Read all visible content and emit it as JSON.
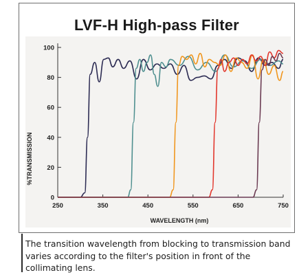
{
  "header": {
    "title": "LVF-H High-pass Filter"
  },
  "caption": "The transition wavelength from blocking to transmission band varies according to the filter's position in front of the collimating lens.",
  "chart_data": {
    "type": "line",
    "title": "LVF-H High-pass Filter",
    "xlabel": "WAVELENGTH (nm)",
    "ylabel": "%TRANSMISSION",
    "xlim": [
      250,
      750
    ],
    "ylim": [
      0,
      100
    ],
    "x_ticks": [
      250,
      350,
      450,
      550,
      650,
      750
    ],
    "y_ticks": [
      0,
      20,
      40,
      60,
      80,
      100
    ],
    "grid": false,
    "legend": "none",
    "series": [
      {
        "color": "#2b2a52",
        "x": [
          250,
          300,
          310,
          316,
          322,
          332,
          342,
          352,
          362,
          372,
          384,
          396,
          410,
          425,
          440,
          455,
          470,
          485,
          500,
          515,
          530,
          545,
          560,
          575,
          590,
          605,
          620,
          635,
          650,
          665,
          680,
          695,
          710,
          725,
          740,
          750
        ],
        "y": [
          0,
          0,
          3,
          40,
          82,
          90,
          77,
          92,
          93,
          87,
          92,
          86,
          91,
          79,
          92,
          85,
          89,
          86,
          89,
          82,
          88,
          78,
          80,
          81,
          79,
          88,
          92,
          86,
          93,
          91,
          84,
          93,
          88,
          90,
          86,
          92
        ]
      },
      {
        "color": "#4e8f8f",
        "x": [
          250,
          405,
          412,
          418,
          424,
          432,
          440,
          448,
          456,
          464,
          472,
          480,
          490,
          500,
          520,
          540,
          560,
          580,
          600,
          620,
          640,
          660,
          680,
          700,
          720,
          740,
          750
        ],
        "y": [
          0,
          0,
          5,
          50,
          86,
          92,
          84,
          90,
          95,
          82,
          74,
          90,
          87,
          92,
          88,
          94,
          85,
          90,
          84,
          95,
          87,
          91,
          86,
          92,
          88,
          91,
          89
        ]
      },
      {
        "color": "#f0961e",
        "x": [
          250,
          498,
          506,
          512,
          518,
          526,
          536,
          546,
          556,
          566,
          576,
          586,
          598,
          610,
          622,
          634,
          646,
          658,
          670,
          682,
          694,
          706,
          718,
          730,
          742,
          750
        ],
        "y": [
          0,
          0,
          5,
          50,
          88,
          94,
          92,
          95,
          89,
          96,
          87,
          92,
          90,
          88,
          95,
          84,
          93,
          90,
          86,
          95,
          79,
          92,
          82,
          88,
          78,
          84
        ]
      },
      {
        "color": "#e2362c",
        "x": [
          250,
          585,
          593,
          599,
          605,
          612,
          620,
          630,
          640,
          650,
          660,
          670,
          680,
          690,
          700,
          710,
          720,
          730,
          740,
          750
        ],
        "y": [
          0,
          0,
          5,
          50,
          86,
          92,
          84,
          90,
          93,
          88,
          92,
          89,
          95,
          91,
          94,
          88,
          97,
          93,
          98,
          96
        ]
      },
      {
        "color": "#6a3a52",
        "x": [
          250,
          683,
          691,
          697,
          703,
          710,
          718,
          726,
          734,
          742,
          750
        ],
        "y": [
          0,
          0,
          5,
          50,
          85,
          92,
          88,
          94,
          91,
          96,
          93
        ]
      }
    ]
  }
}
